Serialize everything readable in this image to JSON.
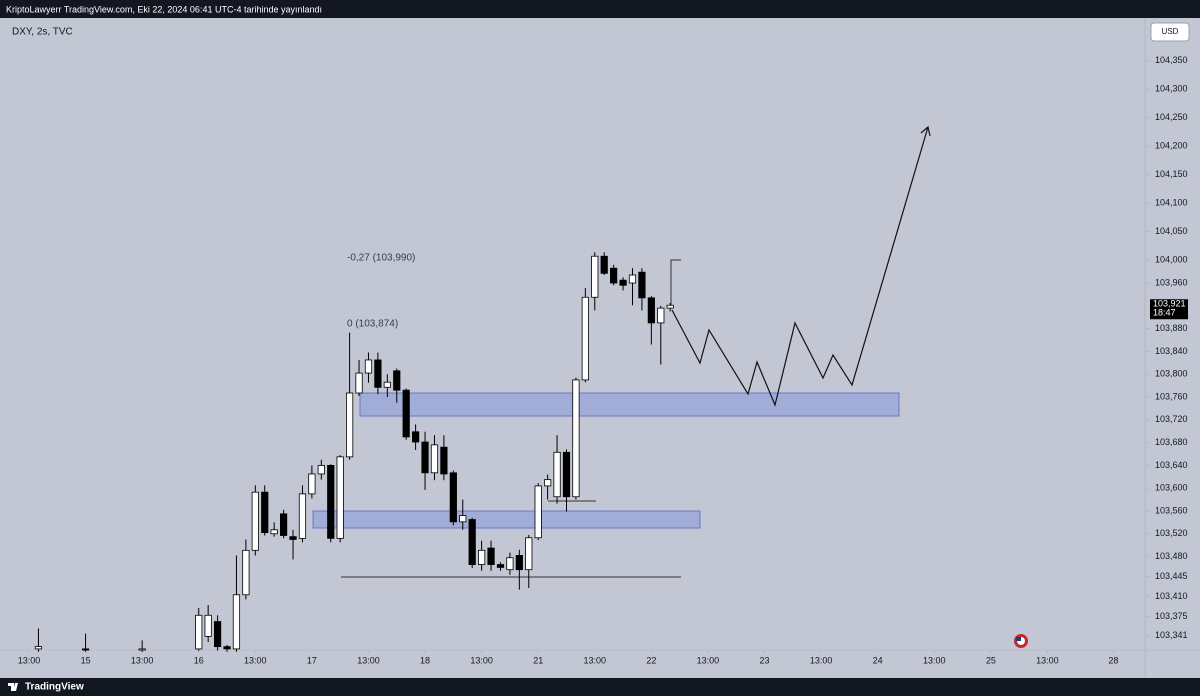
{
  "chart_data": {
    "type": "candlestick",
    "header": "KriptoLawyerr TradingView.com, Eki 22, 2024 06:41 UTC-4 tarihinde yayınlandı",
    "title": "DXY, 2s, TVC",
    "currency": "USD",
    "footer": "TradingView",
    "annotations": [
      "-0,27 (103,990)",
      "0 (103,874)"
    ],
    "last_price": {
      "value": 103.921,
      "label": "103,921"
    },
    "countdown": "18:47",
    "up_color": "#ffffff",
    "down_color": "#000000",
    "grid": false,
    "xlim": [
      -3.075,
      118.35
    ],
    "xticks": [
      {
        "value": 0,
        "label": "13:00"
      },
      {
        "value": 6,
        "label": "15"
      },
      {
        "value": 12,
        "label": "13:00"
      },
      {
        "value": 18,
        "label": "16"
      },
      {
        "value": 24,
        "label": "13:00"
      },
      {
        "value": 30,
        "label": "17"
      },
      {
        "value": 36,
        "label": "13:00"
      },
      {
        "value": 42,
        "label": "18"
      },
      {
        "value": 48,
        "label": "13:00"
      },
      {
        "value": 54,
        "label": "21"
      },
      {
        "value": 60,
        "label": "13:00"
      },
      {
        "value": 66,
        "label": "22"
      },
      {
        "value": 72,
        "label": "13:00"
      },
      {
        "value": 78,
        "label": "23"
      },
      {
        "value": 84,
        "label": "13:00"
      },
      {
        "value": 90,
        "label": "24"
      },
      {
        "value": 96,
        "label": "13:00"
      },
      {
        "value": 102,
        "label": "25"
      },
      {
        "value": 108,
        "label": "13:00"
      },
      {
        "value": 115,
        "label": "28"
      }
    ],
    "ylim": [
      103.281,
      104.425
    ],
    "yticks": [
      {
        "value": 104.35,
        "label": "104,350"
      },
      {
        "value": 104.3,
        "label": "104,300"
      },
      {
        "value": 104.25,
        "label": "104,250"
      },
      {
        "value": 104.2,
        "label": "104,200"
      },
      {
        "value": 104.15,
        "label": "104,150"
      },
      {
        "value": 104.1,
        "label": "104,100"
      },
      {
        "value": 104.05,
        "label": "104,050"
      },
      {
        "value": 104.0,
        "label": "104,000"
      },
      {
        "value": 103.96,
        "label": "103,960"
      },
      {
        "value": 103.88,
        "label": "103,880"
      },
      {
        "value": 103.84,
        "label": "103,840"
      },
      {
        "value": 103.8,
        "label": "103,800"
      },
      {
        "value": 103.76,
        "label": "103,760"
      },
      {
        "value": 103.72,
        "label": "103,720"
      },
      {
        "value": 103.68,
        "label": "103,680"
      },
      {
        "value": 103.64,
        "label": "103,640"
      },
      {
        "value": 103.6,
        "label": "103,600"
      },
      {
        "value": 103.56,
        "label": "103,560"
      },
      {
        "value": 103.52,
        "label": "103,520"
      },
      {
        "value": 103.48,
        "label": "103,480"
      },
      {
        "value": 103.445,
        "label": "103,445"
      },
      {
        "value": 103.41,
        "label": "103,410"
      },
      {
        "value": 103.375,
        "label": "103,375"
      },
      {
        "value": 103.341,
        "label": "103,341"
      }
    ],
    "x": [
      1,
      6,
      12,
      18,
      19,
      20,
      21,
      22,
      23,
      24,
      25,
      26,
      27,
      28,
      29,
      30,
      31,
      32,
      33,
      34,
      35,
      36,
      37,
      38,
      39,
      40,
      41,
      42,
      43,
      44,
      45,
      46,
      47,
      48,
      49,
      50,
      51,
      52,
      53,
      54,
      55,
      56,
      57,
      58,
      59,
      60,
      61,
      62,
      63,
      64,
      65,
      66,
      67,
      68
    ],
    "open": [
      103.318,
      103.318,
      103.316,
      103.318,
      103.34,
      103.366,
      103.322,
      103.318,
      103.413,
      103.491,
      103.593,
      103.52,
      103.555,
      103.515,
      103.512,
      103.59,
      103.625,
      103.64,
      103.512,
      103.655,
      103.767,
      103.802,
      103.825,
      103.777,
      103.806,
      103.772,
      103.699,
      103.681,
      103.627,
      103.672,
      103.627,
      103.541,
      103.545,
      103.466,
      103.495,
      103.466,
      103.457,
      103.482,
      103.457,
      103.513,
      103.604,
      103.585,
      103.663,
      103.585,
      103.79,
      103.935,
      104.007,
      103.986,
      103.965,
      103.96,
      103.979,
      103.934,
      103.89,
      103.916
    ],
    "high": [
      103.354,
      103.345,
      103.333,
      103.39,
      103.395,
      103.377,
      103.325,
      103.482,
      103.51,
      103.605,
      103.605,
      103.54,
      103.562,
      103.527,
      103.605,
      103.64,
      103.65,
      103.642,
      103.658,
      103.873,
      103.825,
      103.838,
      103.838,
      103.8,
      103.81,
      103.775,
      103.712,
      103.699,
      103.693,
      103.693,
      103.631,
      103.58,
      103.548,
      103.508,
      103.508,
      103.47,
      103.487,
      103.492,
      103.518,
      103.609,
      103.624,
      103.693,
      103.668,
      103.794,
      103.951,
      104.014,
      104.014,
      103.992,
      103.97,
      103.986,
      103.986,
      103.937,
      103.92,
      103.925
    ],
    "low": [
      103.313,
      103.313,
      103.313,
      103.315,
      103.33,
      103.315,
      103.313,
      103.313,
      103.405,
      103.482,
      103.517,
      103.515,
      103.512,
      103.475,
      103.505,
      103.582,
      103.615,
      103.505,
      103.505,
      103.65,
      103.762,
      103.785,
      103.765,
      103.76,
      103.75,
      103.685,
      103.667,
      103.597,
      103.614,
      103.614,
      103.535,
      103.527,
      103.46,
      103.455,
      103.455,
      103.455,
      103.448,
      103.422,
      103.425,
      103.509,
      103.58,
      103.573,
      103.559,
      103.58,
      103.786,
      103.912,
      103.974,
      103.956,
      103.947,
      103.921,
      103.912,
      103.852,
      103.817,
      103.91
    ],
    "close": [
      103.322,
      103.316,
      103.318,
      103.377,
      103.377,
      103.322,
      103.318,
      103.413,
      103.491,
      103.593,
      103.522,
      103.527,
      103.517,
      103.51,
      103.59,
      103.625,
      103.64,
      103.512,
      103.655,
      103.767,
      103.802,
      103.825,
      103.777,
      103.786,
      103.772,
      103.69,
      103.681,
      103.627,
      103.676,
      103.625,
      103.541,
      103.552,
      103.466,
      103.491,
      103.466,
      103.461,
      103.478,
      103.457,
      103.513,
      103.604,
      103.615,
      103.663,
      103.585,
      103.79,
      103.935,
      104.007,
      103.977,
      103.96,
      103.956,
      103.974,
      103.934,
      103.89,
      103.916,
      103.921
    ]
  }
}
